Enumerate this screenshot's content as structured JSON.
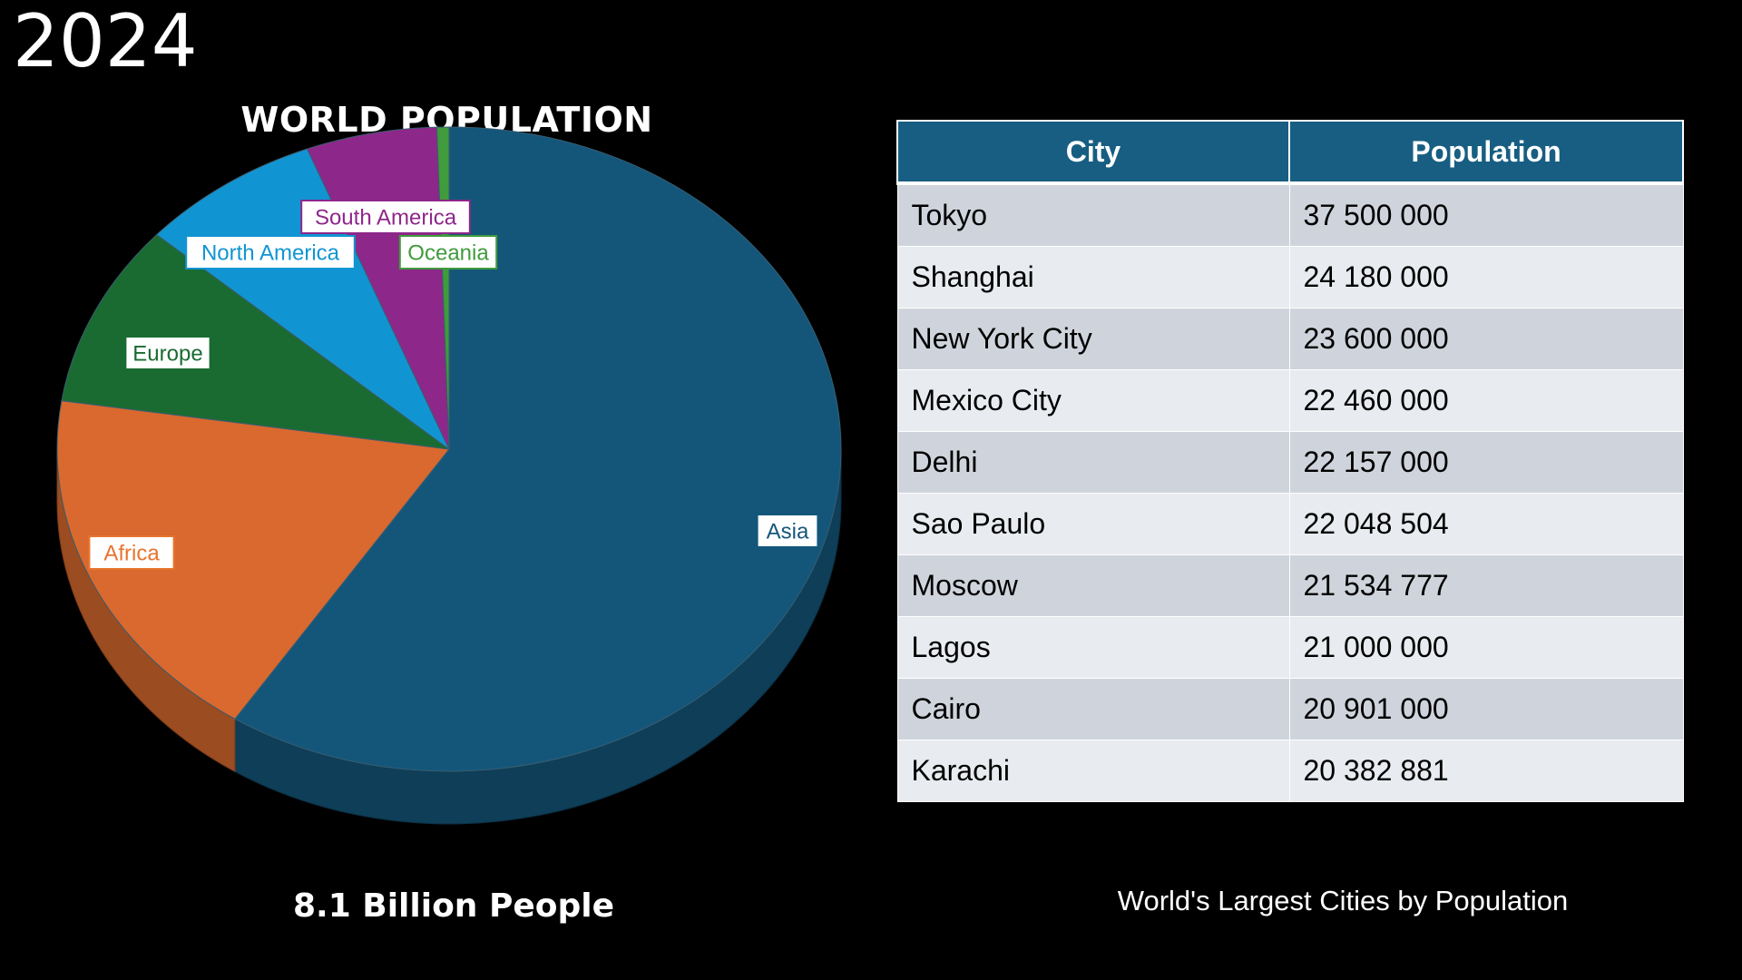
{
  "year": "2024",
  "chart_data": {
    "type": "pie",
    "title": "WORLD POPULATION",
    "caption": "8.1 Billion People",
    "categories": [
      "Asia",
      "Africa",
      "Europe",
      "North America",
      "South America",
      "Oceania"
    ],
    "values": [
      59.2,
      18.2,
      9.2,
      7.5,
      5.4,
      0.5
    ],
    "value_unit": "% of world population (estimated)",
    "colors": [
      "#14567a",
      "#d9692e",
      "#1a6b31",
      "#1195d2",
      "#8e278a",
      "#3f9b3c"
    ],
    "label_colors": [
      "#14567a",
      "#e8742f",
      "#1a6b31",
      "#1195d2",
      "#8e278a",
      "#3f9b3c"
    ]
  },
  "table": {
    "caption": "World's Largest Cities by Population",
    "headers": [
      "City",
      "Population"
    ],
    "rows": [
      [
        "Tokyo",
        "37 500 000"
      ],
      [
        "Shanghai",
        "24 180 000"
      ],
      [
        "New York City",
        "23 600 000"
      ],
      [
        "Mexico City",
        "22 460 000"
      ],
      [
        "Delhi",
        "22 157 000"
      ],
      [
        "Sao Paulo",
        "22 048 504"
      ],
      [
        "Moscow",
        "21 534 777"
      ],
      [
        "Lagos",
        "21 000 000"
      ],
      [
        "Cairo",
        "20 901 000"
      ],
      [
        "Karachi",
        "20 382 881"
      ]
    ]
  }
}
